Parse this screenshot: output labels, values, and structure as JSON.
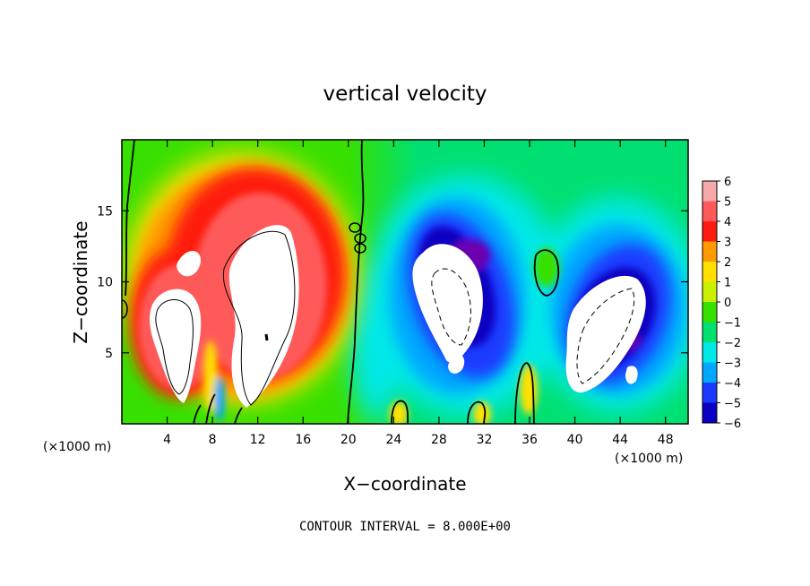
{
  "chart_data": {
    "type": "heatmap",
    "title": "vertical velocity",
    "xlabel": "X−coordinate",
    "ylabel": "Z−coordinate",
    "x_unit_left": "(×1000 m)",
    "x_unit_right": "(×1000 m)",
    "xlim": [
      0,
      50
    ],
    "ylim": [
      0,
      20
    ],
    "x_ticks": [
      4,
      8,
      12,
      16,
      20,
      24,
      28,
      32,
      36,
      40,
      44,
      48
    ],
    "x_tick_labels": [
      "4",
      "8",
      "12",
      "16",
      "20",
      "24",
      "28",
      "32",
      "36",
      "40",
      "44",
      "48"
    ],
    "y_ticks": [
      5,
      10,
      15
    ],
    "y_tick_labels": [
      "5",
      "10",
      "15"
    ],
    "colorbar": {
      "levels": [
        6,
        5,
        4,
        3,
        2,
        1,
        0,
        -1,
        -2,
        -3,
        -4,
        -5,
        -6
      ],
      "labels": [
        "6",
        "5",
        "4",
        "3",
        "2",
        "1",
        "0",
        "−1",
        "−2",
        "−3",
        "−4",
        "−5",
        "−6"
      ],
      "colors": [
        "#f7a8a8",
        "#ff5a5a",
        "#ff1a10",
        "#ff9a00",
        "#ffe000",
        "#c8f000",
        "#38e000",
        "#00e070",
        "#00e8e8",
        "#00a8ff",
        "#1a3aff",
        "#0a00c0",
        "#6a00b0"
      ]
    },
    "features": [
      {
        "kind": "updraft-core",
        "x": 13,
        "z": 9.5,
        "sign": "positive"
      },
      {
        "kind": "updraft-core",
        "x": 6,
        "z": 7,
        "sign": "positive"
      },
      {
        "kind": "downdraft-core",
        "x": 30,
        "z": 8.5,
        "sign": "negative"
      },
      {
        "kind": "downdraft-core",
        "x": 44,
        "z": 6.5,
        "sign": "negative"
      }
    ],
    "footnote": "CONTOUR INTERVAL = 8.000E+00",
    "grid": false,
    "legend": "right (colorbar)"
  }
}
